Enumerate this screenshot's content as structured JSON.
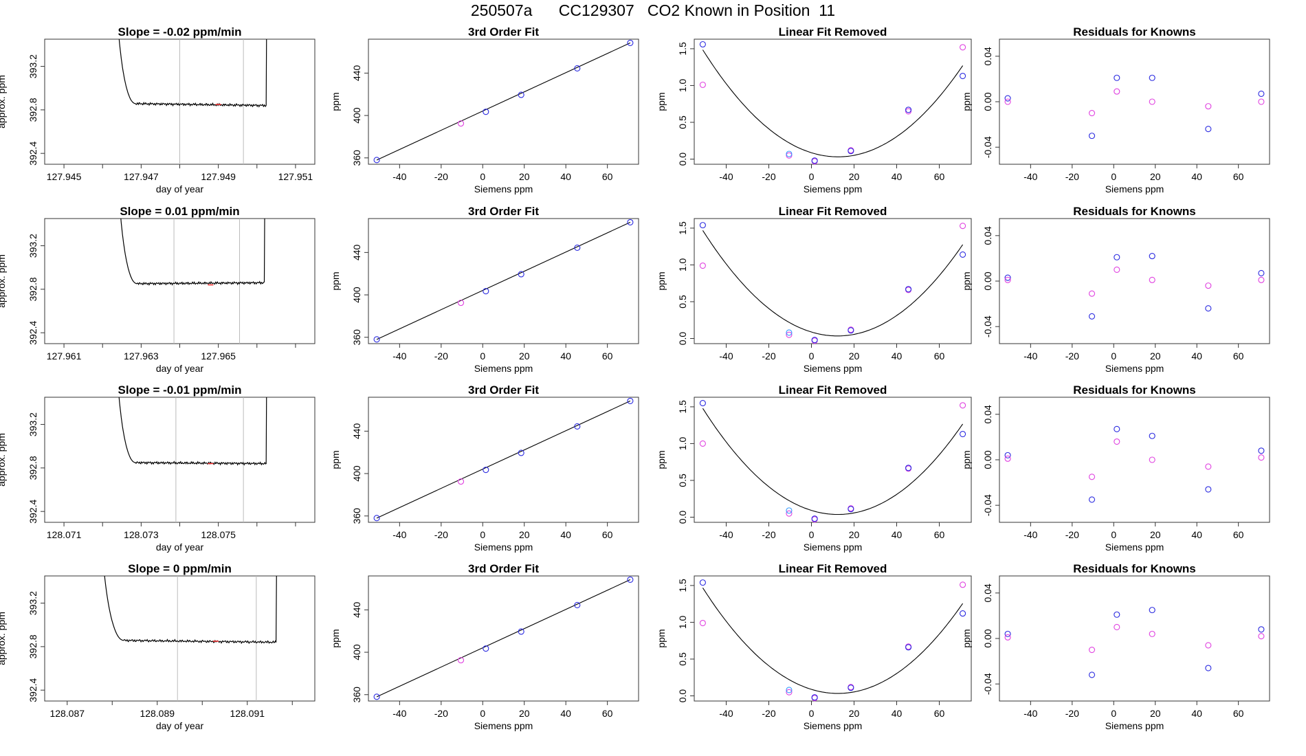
{
  "title": "250507a      CC129307   CO2 Known in Position  11",
  "colors": {
    "line": "#000000",
    "blue": "#2a2ae0",
    "magenta": "#e040e0",
    "lightblue": "#3399ff",
    "vline": "#bbbbbb",
    "red": "#ff3333"
  },
  "chart_data": [
    {
      "row": 0,
      "type": "line",
      "title": "Slope =  -0.02  ppm/min",
      "xlabel": "day of year",
      "ylabel": "approx. ppm",
      "xlim": [
        127.9445,
        127.9515
      ],
      "ylim": [
        392.3,
        393.45
      ],
      "xticks": [
        127.945,
        127.946,
        127.947,
        127.948,
        127.949,
        127.95,
        127.951
      ],
      "xtick_labels": [
        "127.945",
        "",
        "127.947",
        "",
        "127.949",
        "",
        "127.951"
      ],
      "yticks": [
        392.4,
        392.8,
        393.2
      ],
      "yticklabels": [
        "392.4",
        "392.8",
        "393.2"
      ],
      "start": 127.9463,
      "end": 127.9503,
      "vlines": [
        127.948,
        127.94965
      ],
      "mark": 127.949,
      "base": 392.86,
      "late": 392.84,
      "fit": {
        "type": "line",
        "title": "3rd Order Fit",
        "xlabel": "Siemens ppm",
        "ylabel": "ppm",
        "x": [
          -51,
          -10.5,
          1.5,
          18.5,
          45.5,
          71
        ],
        "y": [
          358,
          392.5,
          403.5,
          419.5,
          444.5,
          468.5
        ],
        "xlim": [
          -55,
          75
        ],
        "ylim": [
          354,
          472
        ],
        "xticks": [
          -40,
          -20,
          0,
          20,
          40,
          60
        ],
        "yticks": [
          360,
          400,
          440
        ],
        "yticklabels": [
          "360",
          "400",
          "440"
        ]
      },
      "linear_removed": {
        "type": "scatter",
        "title": "Linear Fit Removed",
        "xlabel": "Siemens ppm",
        "ylabel": "ppm",
        "x": [
          -51,
          -10.5,
          1.5,
          18.5,
          45.5,
          71
        ],
        "blue": [
          1.56,
          0.07,
          -0.02,
          0.11,
          0.67,
          1.13
        ],
        "magenta": [
          1.01,
          0.05,
          -0.03,
          0.12,
          0.65,
          1.52
        ],
        "xlim": [
          -55,
          75
        ],
        "ylim": [
          -0.07,
          1.63
        ],
        "xticks": [
          -40,
          -20,
          0,
          20,
          40,
          60
        ],
        "yticks": [
          0,
          0.5,
          1,
          1.5
        ],
        "yticklabels": [
          "0.0",
          "0.5",
          "1.0",
          "1.5"
        ]
      },
      "residuals": {
        "type": "scatter",
        "title": "Residuals for Knowns",
        "xlabel": "Siemens ppm",
        "ylabel": "ppm",
        "x": [
          -51,
          -10.5,
          1.5,
          18.5,
          45.5,
          71
        ],
        "blue": [
          0.003,
          -0.03,
          0.021,
          0.021,
          -0.024,
          0.007
        ],
        "magenta": [
          0.0,
          -0.01,
          0.009,
          0.0,
          -0.004,
          0.0
        ],
        "xlim": [
          -55,
          75
        ],
        "ylim": [
          -0.055,
          0.055
        ],
        "xticks": [
          -40,
          -20,
          0,
          20,
          40,
          60
        ],
        "yticks": [
          -0.04,
          0,
          0.04
        ],
        "yticklabels": [
          "-0.04",
          "0.00",
          "0.04"
        ]
      }
    },
    {
      "row": 1,
      "type": "line",
      "title": "Slope =  0.01  ppm/min",
      "xlabel": "day of year",
      "ylabel": "approx. ppm",
      "xlim": [
        127.9605,
        127.9675
      ],
      "ylim": [
        392.3,
        393.45
      ],
      "xticks": [
        127.961,
        127.962,
        127.963,
        127.964,
        127.965,
        127.966,
        127.967
      ],
      "xtick_labels": [
        "127.961",
        "",
        "127.963",
        "",
        "127.965",
        "",
        ""
      ],
      "yticks": [
        392.4,
        392.8,
        393.2
      ],
      "yticklabels": [
        "392.4",
        "392.8",
        "393.2"
      ],
      "start": 127.96235,
      "end": 127.96625,
      "vlines": [
        127.96385,
        127.96555
      ],
      "mark": 127.9648,
      "base": 392.85,
      "late": 392.86,
      "fit": {
        "type": "line",
        "title": "3rd Order Fit",
        "xlabel": "Siemens ppm",
        "ylabel": "ppm",
        "x": [
          -51,
          -10.5,
          1.5,
          18.5,
          45.5,
          71
        ],
        "y": [
          358,
          392.5,
          403.5,
          419.5,
          444.5,
          468.5
        ],
        "xlim": [
          -55,
          75
        ],
        "ylim": [
          354,
          472
        ],
        "xticks": [
          -40,
          -20,
          0,
          20,
          40,
          60
        ],
        "yticks": [
          360,
          400,
          440
        ],
        "yticklabels": [
          "360",
          "400",
          "440"
        ]
      },
      "linear_removed": {
        "type": "scatter",
        "title": "Linear Fit Removed",
        "xlabel": "Siemens ppm",
        "ylabel": "ppm",
        "x": [
          -51,
          -10.5,
          1.5,
          18.5,
          45.5,
          71
        ],
        "blue": [
          1.54,
          0.08,
          -0.02,
          0.11,
          0.67,
          1.14
        ],
        "magenta": [
          0.99,
          0.05,
          -0.03,
          0.12,
          0.66,
          1.53
        ],
        "xlim": [
          -55,
          75
        ],
        "ylim": [
          -0.07,
          1.63
        ],
        "xticks": [
          -40,
          -20,
          0,
          20,
          40,
          60
        ],
        "yticks": [
          0,
          0.5,
          1,
          1.5
        ],
        "yticklabels": [
          "0.0",
          "0.5",
          "1.0",
          "1.5"
        ]
      },
      "residuals": {
        "type": "scatter",
        "title": "Residuals for Knowns",
        "xlabel": "Siemens ppm",
        "ylabel": "ppm",
        "x": [
          -51,
          -10.5,
          1.5,
          18.5,
          45.5,
          71
        ],
        "blue": [
          0.003,
          -0.031,
          0.021,
          0.022,
          -0.024,
          0.007
        ],
        "magenta": [
          0.001,
          -0.011,
          0.01,
          0.001,
          -0.004,
          0.001
        ],
        "xlim": [
          -55,
          75
        ],
        "ylim": [
          -0.055,
          0.055
        ],
        "xticks": [
          -40,
          -20,
          0,
          20,
          40,
          60
        ],
        "yticks": [
          -0.04,
          0,
          0.04
        ],
        "yticklabels": [
          "-0.04",
          "0.00",
          "0.04"
        ]
      }
    },
    {
      "row": 2,
      "type": "line",
      "title": "Slope =  -0.01  ppm/min",
      "xlabel": "day of year",
      "ylabel": "approx. ppm",
      "xlim": [
        128.0705,
        128.0775
      ],
      "ylim": [
        392.3,
        393.45
      ],
      "xticks": [
        128.071,
        128.072,
        128.073,
        128.074,
        128.075,
        128.076,
        128.077
      ],
      "xtick_labels": [
        "128.071",
        "",
        "128.073",
        "",
        "128.075",
        "",
        ""
      ],
      "yticks": [
        392.4,
        392.8,
        393.2
      ],
      "yticklabels": [
        "392.4",
        "392.8",
        "393.2"
      ],
      "start": 128.0723,
      "end": 128.0763,
      "vlines": [
        128.0739,
        128.07565
      ],
      "mark": 128.0748,
      "base": 392.85,
      "late": 392.84,
      "fit": {
        "type": "line",
        "title": "3rd Order Fit",
        "xlabel": "Siemens ppm",
        "ylabel": "ppm",
        "x": [
          -51,
          -10.5,
          1.5,
          18.5,
          45.5,
          71
        ],
        "y": [
          358,
          392.5,
          403.5,
          419.5,
          444.5,
          468.5
        ],
        "xlim": [
          -55,
          75
        ],
        "ylim": [
          354,
          472
        ],
        "xticks": [
          -40,
          -20,
          0,
          20,
          40,
          60
        ],
        "yticks": [
          360,
          400,
          440
        ],
        "yticklabels": [
          "360",
          "400",
          "440"
        ]
      },
      "linear_removed": {
        "type": "scatter",
        "title": "Linear Fit Removed",
        "xlabel": "Siemens ppm",
        "ylabel": "ppm",
        "x": [
          -51,
          -10.5,
          1.5,
          18.5,
          45.5,
          71
        ],
        "blue": [
          1.55,
          0.09,
          -0.02,
          0.11,
          0.67,
          1.13
        ],
        "magenta": [
          1.0,
          0.05,
          -0.03,
          0.12,
          0.66,
          1.52
        ],
        "xlim": [
          -55,
          75
        ],
        "ylim": [
          -0.07,
          1.63
        ],
        "xticks": [
          -40,
          -20,
          0,
          20,
          40,
          60
        ],
        "yticks": [
          0,
          0.5,
          1,
          1.5
        ],
        "yticklabels": [
          "0.0",
          "0.5",
          "1.0",
          "1.5"
        ]
      },
      "residuals": {
        "type": "scatter",
        "title": "Residuals for Knowns",
        "xlabel": "Siemens ppm",
        "ylabel": "ppm",
        "x": [
          -51,
          -10.5,
          1.5,
          18.5,
          45.5,
          71
        ],
        "blue": [
          0.004,
          -0.035,
          0.027,
          0.021,
          -0.026,
          0.008
        ],
        "magenta": [
          0.001,
          -0.015,
          0.016,
          0.0,
          -0.006,
          0.002
        ],
        "xlim": [
          -55,
          75
        ],
        "ylim": [
          -0.055,
          0.055
        ],
        "xticks": [
          -40,
          -20,
          0,
          20,
          40,
          60
        ],
        "yticks": [
          -0.04,
          0,
          0.04
        ],
        "yticklabels": [
          "-0.04",
          "0.00",
          "0.04"
        ]
      }
    },
    {
      "row": 3,
      "type": "line",
      "title": "Slope =  0  ppm/min",
      "xlabel": "day of year",
      "ylabel": "approx. ppm",
      "xlim": [
        128.0865,
        128.0925
      ],
      "ylim": [
        392.3,
        393.45
      ],
      "xticks": [
        128.087,
        128.088,
        128.089,
        128.09,
        128.091,
        128.092
      ],
      "xtick_labels": [
        "128.087",
        "",
        "128.089",
        "",
        "128.091",
        ""
      ],
      "yticks": [
        392.4,
        392.8,
        393.2
      ],
      "yticklabels": [
        "392.4",
        "392.8",
        "393.2"
      ],
      "start": 128.0877,
      "end": 128.0917,
      "vlines": [
        128.08945,
        128.0912
      ],
      "mark": 128.0903,
      "base": 392.86,
      "late": 392.84,
      "fit": {
        "type": "line",
        "title": "3rd Order Fit",
        "xlabel": "Siemens ppm",
        "ylabel": "ppm",
        "x": [
          -51,
          -10.5,
          1.5,
          18.5,
          45.5,
          71
        ],
        "y": [
          358,
          392.5,
          403.5,
          419.5,
          444.5,
          468.5
        ],
        "xlim": [
          -55,
          75
        ],
        "ylim": [
          354,
          472
        ],
        "xticks": [
          -40,
          -20,
          0,
          20,
          40,
          60
        ],
        "yticks": [
          360,
          400,
          440
        ],
        "yticklabels": [
          "360",
          "400",
          "440"
        ]
      },
      "linear_removed": {
        "type": "scatter",
        "title": "Linear Fit Removed",
        "xlabel": "Siemens ppm",
        "ylabel": "ppm",
        "x": [
          -51,
          -10.5,
          1.5,
          18.5,
          45.5,
          71
        ],
        "blue": [
          1.54,
          0.08,
          -0.02,
          0.11,
          0.66,
          1.12
        ],
        "magenta": [
          0.99,
          0.05,
          -0.03,
          0.12,
          0.67,
          1.51
        ],
        "xlim": [
          -55,
          75
        ],
        "ylim": [
          -0.07,
          1.63
        ],
        "xticks": [
          -40,
          -20,
          0,
          20,
          40,
          60
        ],
        "yticks": [
          0,
          0.5,
          1,
          1.5
        ],
        "yticklabels": [
          "0.0",
          "0.5",
          "1.0",
          "1.5"
        ]
      },
      "residuals": {
        "type": "scatter",
        "title": "Residuals for Knowns",
        "xlabel": "Siemens ppm",
        "ylabel": "ppm",
        "x": [
          -51,
          -10.5,
          1.5,
          18.5,
          45.5,
          71
        ],
        "blue": [
          0.004,
          -0.032,
          0.021,
          0.025,
          -0.026,
          0.008
        ],
        "magenta": [
          0.001,
          -0.01,
          0.01,
          0.004,
          -0.006,
          0.002
        ],
        "xlim": [
          -55,
          75
        ],
        "ylim": [
          -0.055,
          0.055
        ],
        "xticks": [
          -40,
          -20,
          0,
          20,
          40,
          60
        ],
        "yticks": [
          -0.04,
          0,
          0.04
        ],
        "yticklabels": [
          "-0.04",
          "0.00",
          "0.04"
        ]
      }
    }
  ]
}
